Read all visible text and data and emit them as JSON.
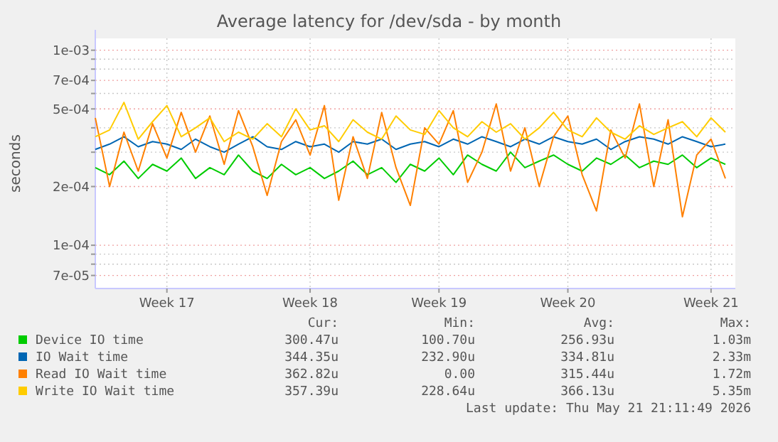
{
  "chart_data": {
    "type": "line",
    "title": "Average latency for /dev/sda - by month",
    "ylabel": "seconds",
    "log": "y",
    "grid": true,
    "legend": "bottom",
    "marker": "none",
    "line_style": "solid",
    "ylim": [
      6e-05,
      0.00115
    ],
    "yticks": [
      {
        "value": 7e-05,
        "label": "7e-05"
      },
      {
        "value": 8e-05,
        "label": null
      },
      {
        "value": 9e-05,
        "label": null
      },
      {
        "value": 0.0001,
        "label": "1e-04"
      },
      {
        "value": 0.0002,
        "label": "2e-04"
      },
      {
        "value": 0.0003,
        "label": null
      },
      {
        "value": 0.0004,
        "label": null
      },
      {
        "value": 0.0005,
        "label": "5e-04"
      },
      {
        "value": 0.0006,
        "label": null
      },
      {
        "value": 0.0007,
        "label": "7e-04"
      },
      {
        "value": 0.0008,
        "label": null
      },
      {
        "value": 0.0009,
        "label": null
      },
      {
        "value": 0.001,
        "label": "1e-03"
      }
    ],
    "categories": [
      null,
      null,
      null,
      null,
      null,
      "Week 17",
      null,
      null,
      null,
      null,
      null,
      null,
      null,
      null,
      null,
      "Week 18",
      null,
      null,
      null,
      null,
      null,
      null,
      null,
      null,
      "Week 19",
      null,
      null,
      null,
      null,
      null,
      null,
      null,
      null,
      "Week 20",
      null,
      null,
      null,
      null,
      null,
      null,
      null,
      null,
      null,
      "Week 21",
      null
    ],
    "series": [
      {
        "name": "Device IO time",
        "color": "#00cc00",
        "values": [
          0.00025,
          0.00023,
          0.00027,
          0.00022,
          0.00026,
          0.00024,
          0.00028,
          0.00022,
          0.00025,
          0.00023,
          0.00029,
          0.00024,
          0.00022,
          0.00026,
          0.00023,
          0.00025,
          0.00022,
          0.00024,
          0.00027,
          0.00023,
          0.00025,
          0.00021,
          0.00026,
          0.00024,
          0.00028,
          0.00023,
          0.00029,
          0.00026,
          0.00024,
          0.0003,
          0.00025,
          0.00027,
          0.00029,
          0.00026,
          0.00024,
          0.00028,
          0.00026,
          0.00029,
          0.00025,
          0.00027,
          0.00026,
          0.00029,
          0.00025,
          0.00028,
          0.00026
        ]
      },
      {
        "name": "IO Wait time",
        "color": "#0066b3",
        "values": [
          0.00031,
          0.00033,
          0.00036,
          0.00032,
          0.00034,
          0.00033,
          0.00031,
          0.00035,
          0.00032,
          0.0003,
          0.00033,
          0.00036,
          0.00032,
          0.00031,
          0.00034,
          0.00032,
          0.00033,
          0.0003,
          0.00034,
          0.00033,
          0.00035,
          0.00031,
          0.00033,
          0.00034,
          0.00032,
          0.00035,
          0.00033,
          0.00036,
          0.00034,
          0.00032,
          0.00035,
          0.00033,
          0.00036,
          0.00034,
          0.00033,
          0.00035,
          0.00031,
          0.00034,
          0.00036,
          0.00035,
          0.00033,
          0.00036,
          0.00034,
          0.00032,
          0.00033
        ]
      },
      {
        "name": "Read IO Wait time",
        "color": "#ff8000",
        "values": [
          0.00045,
          0.0002,
          0.00038,
          0.00024,
          0.00042,
          0.00028,
          0.00048,
          0.0003,
          0.00046,
          0.00026,
          0.00049,
          0.00032,
          0.00018,
          0.00034,
          0.00044,
          0.00029,
          0.00052,
          0.00017,
          0.00036,
          0.00022,
          0.00048,
          0.00025,
          0.00016,
          0.0004,
          0.00033,
          0.00049,
          0.00021,
          0.0003,
          0.00053,
          0.00024,
          0.0004,
          0.0002,
          0.00036,
          0.00046,
          0.00023,
          0.00015,
          0.00039,
          0.00028,
          0.00053,
          0.0002,
          0.00044,
          0.00014,
          0.00029,
          0.00035,
          0.00022
        ]
      },
      {
        "name": "Write IO Wait time",
        "color": "#ffcc00",
        "values": [
          0.00036,
          0.00039,
          0.00054,
          0.00035,
          0.00043,
          0.00052,
          0.00036,
          0.0004,
          0.00045,
          0.00034,
          0.00038,
          0.00035,
          0.00042,
          0.00036,
          0.0005,
          0.00039,
          0.00041,
          0.00034,
          0.00044,
          0.00038,
          0.00035,
          0.00046,
          0.00039,
          0.00037,
          0.00049,
          0.0004,
          0.00036,
          0.00043,
          0.00038,
          0.00042,
          0.00035,
          0.0004,
          0.00048,
          0.00039,
          0.00036,
          0.00045,
          0.00038,
          0.00035,
          0.00041,
          0.00037,
          0.0004,
          0.00043,
          0.00036,
          0.00045,
          0.00038
        ]
      }
    ],
    "annotations": [
      "Cur:",
      "Min:",
      "Avg:",
      "Max:",
      "300.47u",
      "100.70u",
      "256.93u",
      "1.03m",
      "344.35u",
      "232.90u",
      "334.81u",
      "2.33m",
      "362.82u",
      "0.00",
      "315.44u",
      "1.72m",
      "357.39u",
      "228.64u",
      "366.13u",
      "5.35m",
      "Last update: Thu May 21 21:11:49 2026"
    ]
  }
}
